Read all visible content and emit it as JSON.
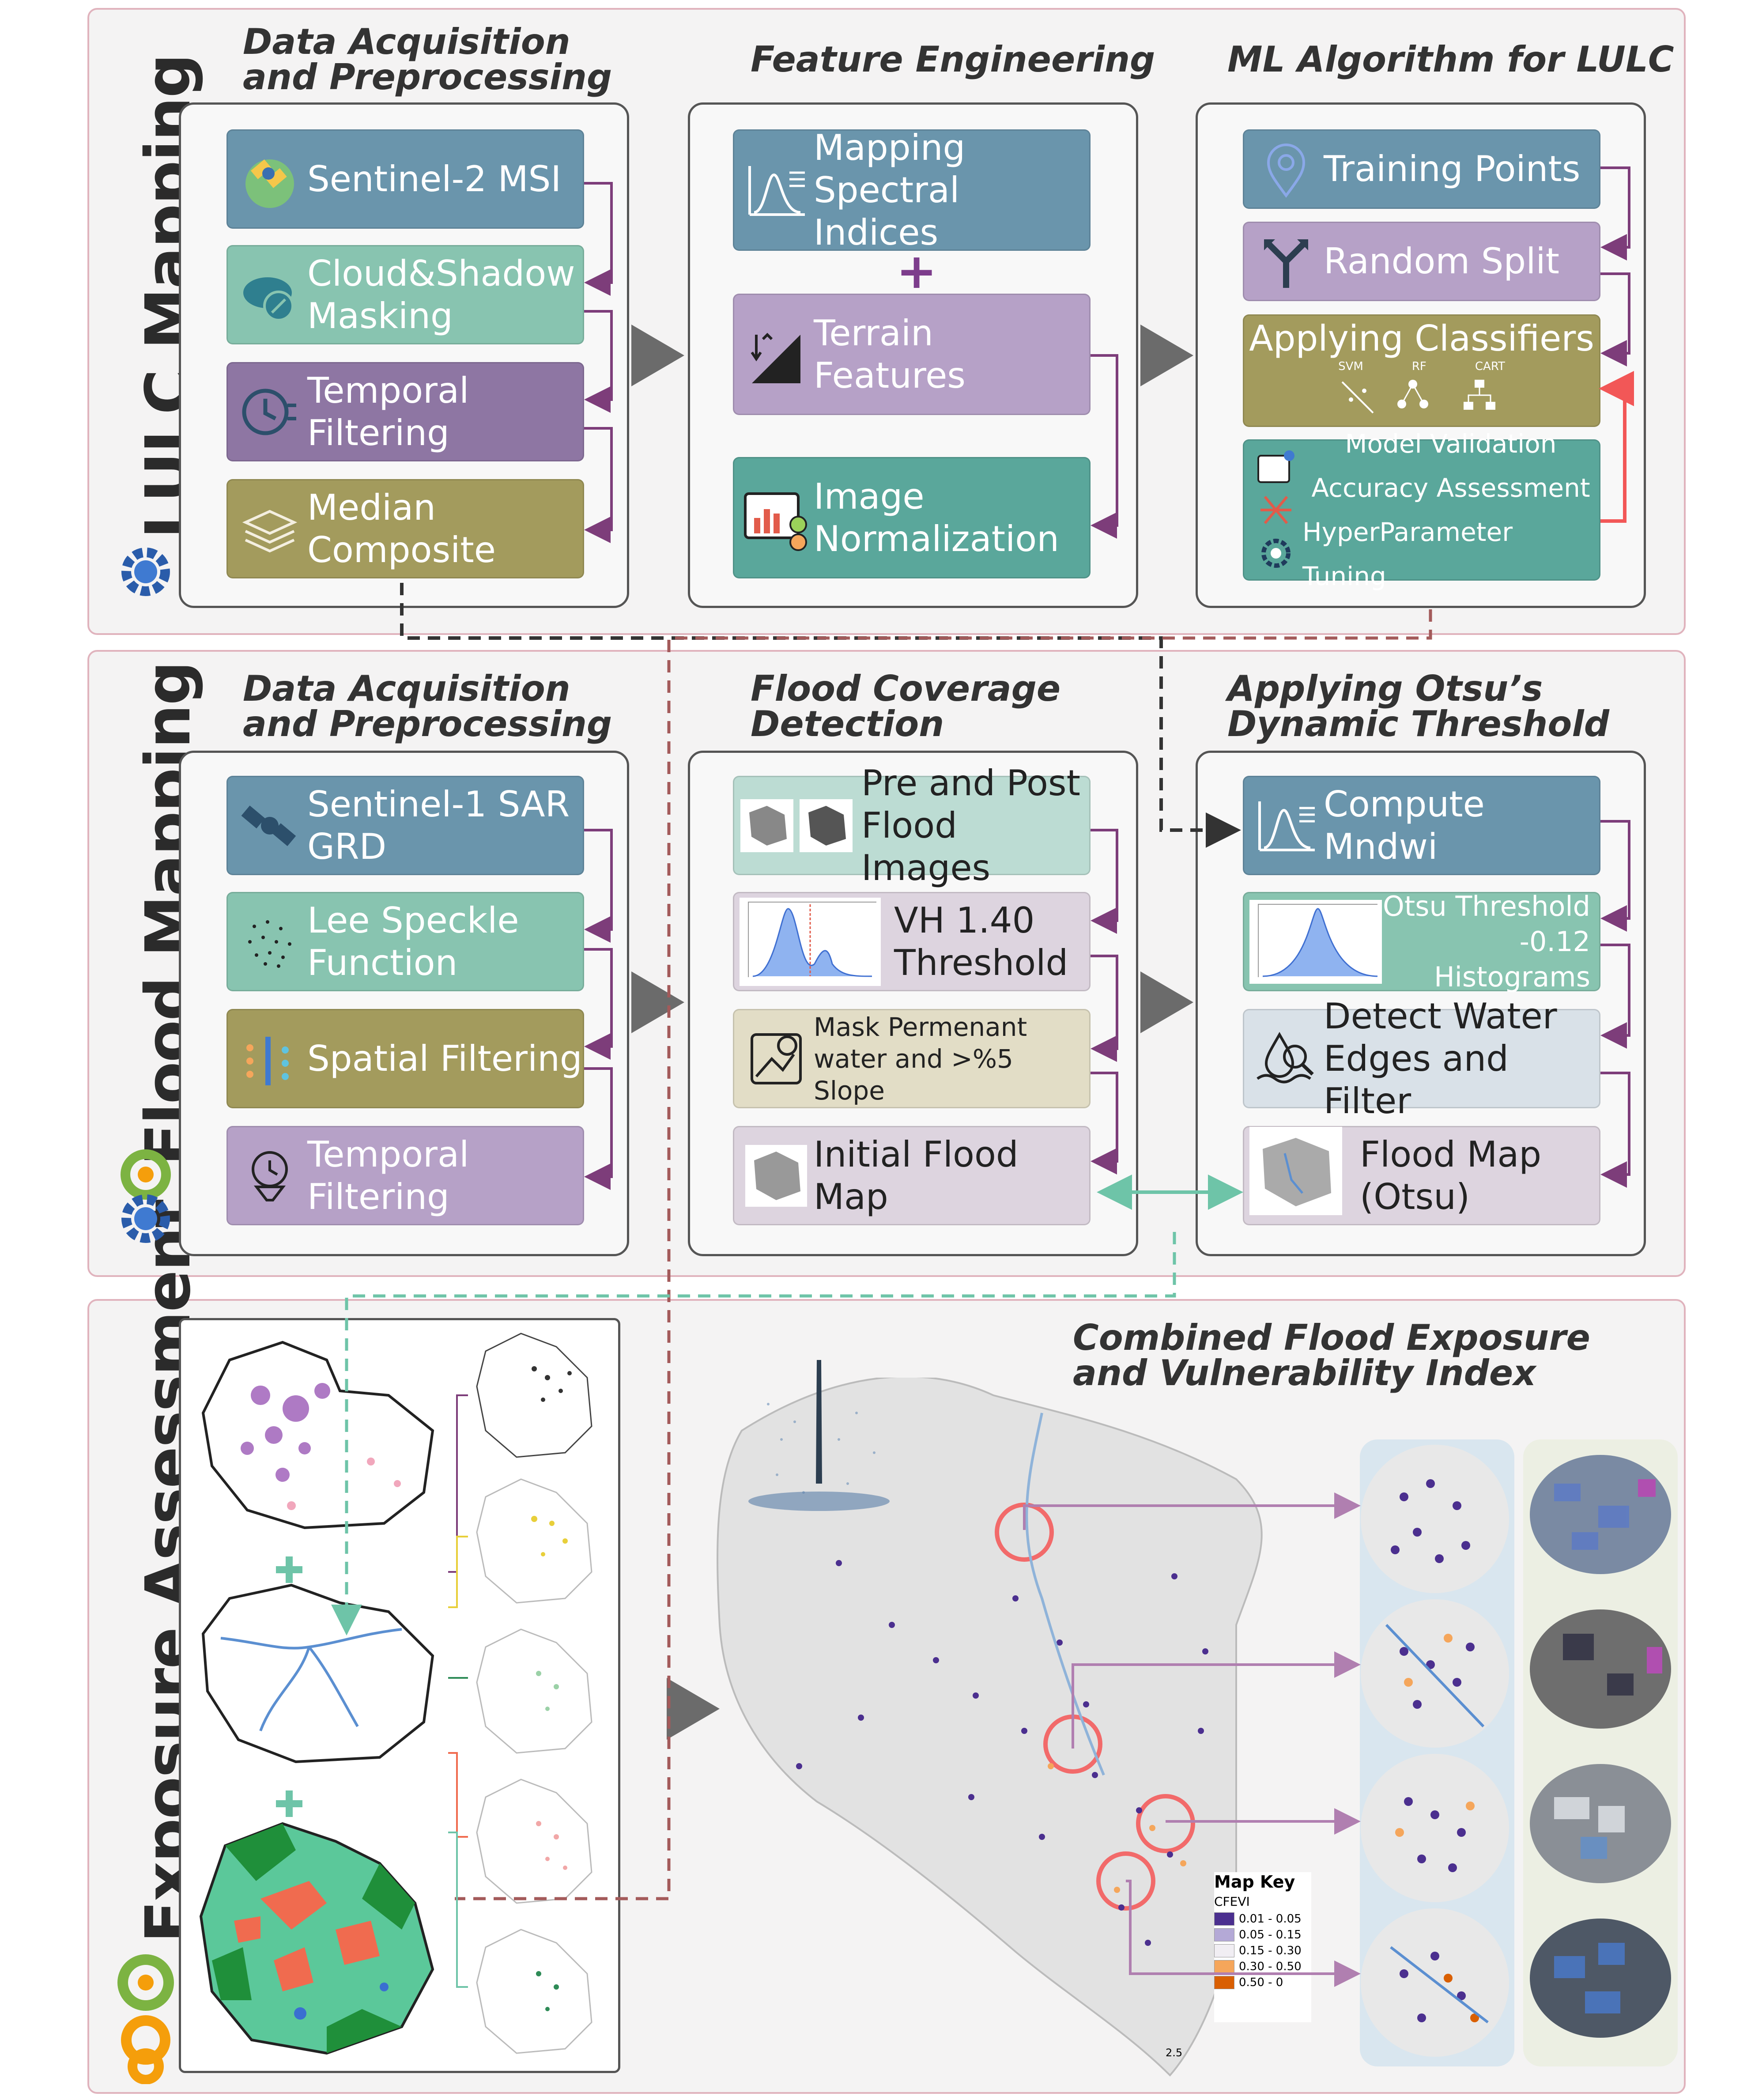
{
  "sections": {
    "lulc": {
      "label": "LULC Mapping"
    },
    "flood": {
      "label": "Flood Mapping"
    },
    "exposure": {
      "label": "Exposure Assessment"
    }
  },
  "lulc": {
    "col1_title": "Data Acquisition\nand Preprocessing",
    "col2_title": "Feature Engineering",
    "col3_title": "ML Algorithm for LULC",
    "col1": [
      "Sentinel-2 MSI",
      "Cloud&Shadow\nMasking",
      "Temporal\nFiltering",
      "Median\nComposite"
    ],
    "col2": [
      "Mapping\nSpectral Indices",
      "Terrain Features",
      "Image\nNormalization"
    ],
    "col2_plus": "+",
    "col3": {
      "training": "Training Points",
      "split": "Random Split",
      "classifiers": "Applying Classifiers",
      "classifier_names": [
        "SVM",
        "RF",
        "CART"
      ],
      "validation": [
        "Model Validation",
        "Accuracy Assessment",
        "HyperParameter Tuning"
      ]
    }
  },
  "flood": {
    "col1_title": "Data Acquisition\nand Preprocessing",
    "col2_title": "Flood Coverage\nDetection",
    "col3_title": "Applying Otsu’s\nDynamic Threshold",
    "col1": [
      "Sentinel-1 SAR\nGRD",
      "Lee Speckle\nFunction",
      "Spatial Filtering",
      "Temporal\nFiltering"
    ],
    "col2": [
      "Pre and Post\nFlood Images",
      "VH 1.40\nThreshold",
      "Mask Permenant\nwater and >%5 Slope",
      "Initial Flood Map"
    ],
    "col3": [
      "Compute\nMndwi",
      "Otsu Threshold\n-0.12 Histograms",
      "Detect Water\nEdges and Filter",
      "Flood Map\n(Otsu)"
    ]
  },
  "exposure": {
    "title": "Combined Flood Exposure\nand Vulnerability Index",
    "map_key_title": "Map Key",
    "map_key_subtitle": "CFEVI",
    "map_key": [
      {
        "label": "0.01 - 0.05",
        "color": "#4b2f8f"
      },
      {
        "label": "0.05 - 0.15",
        "color": "#b4a9d6"
      },
      {
        "label": "0.15 - 0.30",
        "color": "#f1eef3"
      },
      {
        "label": "0.30 - 0.50",
        "color": "#f5a65b"
      },
      {
        "label": "0.50 - 0",
        "color": "#d95f02"
      }
    ],
    "scale_label": "2.5"
  },
  "colors": {
    "arrow_purple": "#7d3d7a",
    "arrow_red": "#f25757",
    "arrow_teal": "#6ec4a8",
    "dash_dark": "#333333",
    "dash_red": "#a35a5a",
    "dash_teal": "#6ec4a8"
  }
}
